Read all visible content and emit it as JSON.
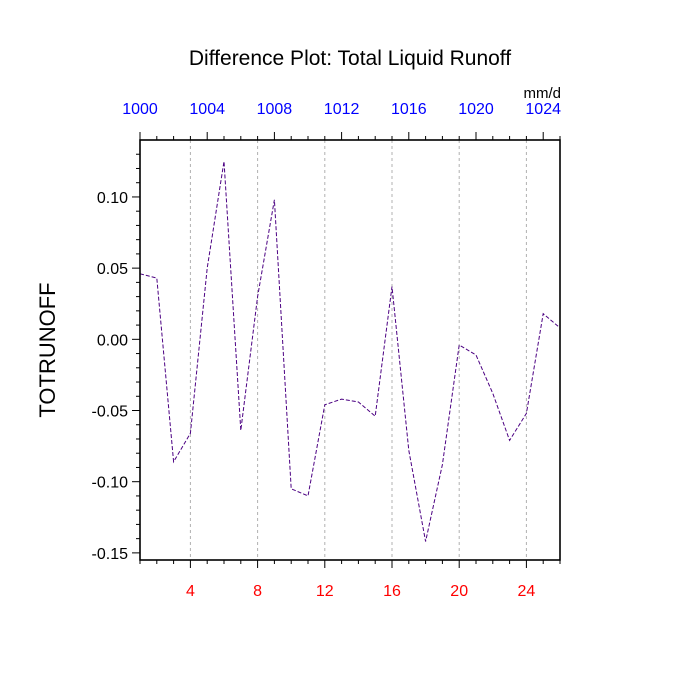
{
  "chart_data": {
    "type": "line",
    "title": "Difference Plot: Total Liquid Runoff",
    "ylabel": "TOTRUNOFF",
    "units": "mm/d",
    "xlim": [
      1,
      26
    ],
    "ylim": [
      -0.155,
      0.14
    ],
    "x_ticks": [
      4,
      8,
      12,
      16,
      20,
      24
    ],
    "x_tick_labels": [
      "4",
      "8",
      "12",
      "16",
      "20",
      "24"
    ],
    "top_ticks": [
      1,
      5,
      9,
      13,
      17,
      21,
      25
    ],
    "top_tick_labels": [
      "1000",
      "1004",
      "1008",
      "1012",
      "1016",
      "1020",
      "1024"
    ],
    "y_ticks": [
      -0.15,
      -0.1,
      -0.05,
      0.0,
      0.05,
      0.1
    ],
    "y_tick_labels": [
      "-0.15",
      "-0.10",
      "-0.05",
      "0.00",
      "0.05",
      "0.10"
    ],
    "grid": "vertical dashed at bottom ticks",
    "colors": {
      "line": "#4b0082",
      "bottom_ticks": "#ff0000",
      "top_ticks": "#0000ff",
      "grid": "#b0b0b0"
    },
    "series": [
      {
        "x": [
          1,
          2,
          3,
          4,
          5,
          6,
          7,
          8,
          9,
          10,
          11,
          12,
          13,
          14,
          15,
          16,
          17,
          18,
          19,
          20,
          21,
          22,
          23,
          24,
          25,
          26
        ],
        "values": [
          0.046,
          0.043,
          -0.086,
          -0.066,
          0.05,
          0.125,
          -0.064,
          0.03,
          0.098,
          -0.105,
          -0.11,
          -0.046,
          -0.042,
          -0.044,
          -0.054,
          0.037,
          -0.078,
          -0.142,
          -0.088,
          -0.004,
          -0.011,
          -0.038,
          -0.071,
          -0.052,
          0.018,
          0.008
        ]
      }
    ]
  }
}
